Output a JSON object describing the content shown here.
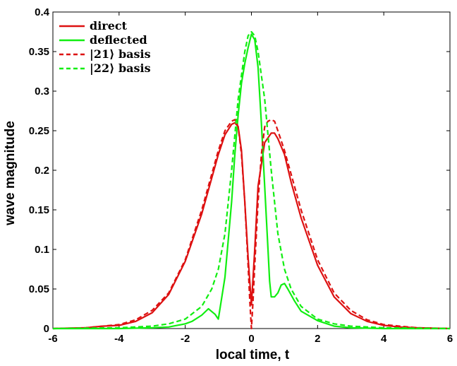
{
  "chart_data": {
    "type": "line",
    "xlabel": "local time, t",
    "ylabel": "wave magnitude",
    "xlim": [
      -6,
      6
    ],
    "ylim": [
      0,
      0.4
    ],
    "xticks": [
      -6,
      -4,
      -2,
      0,
      2,
      4,
      6
    ],
    "yticks": [
      0,
      0.05,
      0.1,
      0.15,
      0.2,
      0.25,
      0.3,
      0.35,
      0.4
    ],
    "xtick_labels": [
      "-6",
      "-4",
      "-2",
      "0",
      "2",
      "4",
      "6"
    ],
    "ytick_labels": [
      "0",
      "0.05",
      "0.1",
      "0.15",
      "0.2",
      "0.25",
      "0.3",
      "0.35",
      "0.4"
    ],
    "grid": false,
    "legend_position": "top-left",
    "colors": {
      "red": "#dd1111",
      "green": "#11ee11"
    },
    "series": [
      {
        "name": "direct",
        "color": "#dd1111",
        "style": "solid",
        "x": [
          -6,
          -5,
          -4.5,
          -4,
          -3.5,
          -3,
          -2.5,
          -2,
          -1.5,
          -1.2,
          -1,
          -0.8,
          -0.6,
          -0.5,
          -0.4,
          -0.3,
          -0.2,
          -0.1,
          0,
          0.1,
          0.2,
          0.4,
          0.6,
          0.7,
          0.8,
          1,
          1.2,
          1.5,
          2,
          2.5,
          3,
          3.5,
          4,
          4.5,
          5,
          6
        ],
        "y": [
          0,
          0.001,
          0.003,
          0.004,
          0.009,
          0.02,
          0.043,
          0.085,
          0.145,
          0.19,
          0.22,
          0.245,
          0.258,
          0.26,
          0.255,
          0.225,
          0.16,
          0.09,
          0.03,
          0.1,
          0.18,
          0.235,
          0.247,
          0.247,
          0.24,
          0.22,
          0.185,
          0.14,
          0.08,
          0.04,
          0.019,
          0.009,
          0.004,
          0.002,
          0.001,
          0
        ]
      },
      {
        "name": "deflected",
        "color": "#11ee11",
        "style": "solid",
        "x": [
          -6,
          -4,
          -3,
          -2.5,
          -2,
          -1.8,
          -1.5,
          -1.3,
          -1.1,
          -1,
          -0.8,
          -0.6,
          -0.5,
          -0.4,
          -0.3,
          -0.2,
          -0.1,
          0,
          0.1,
          0.2,
          0.3,
          0.4,
          0.5,
          0.55,
          0.6,
          0.7,
          0.8,
          0.9,
          1,
          1.1,
          1.3,
          1.5,
          2,
          2.5,
          3,
          4,
          6
        ],
        "y": [
          0,
          0,
          0.001,
          0.002,
          0.006,
          0.009,
          0.017,
          0.025,
          0.018,
          0.012,
          0.065,
          0.16,
          0.22,
          0.27,
          0.31,
          0.335,
          0.355,
          0.372,
          0.365,
          0.33,
          0.26,
          0.18,
          0.1,
          0.06,
          0.04,
          0.04,
          0.045,
          0.055,
          0.057,
          0.05,
          0.035,
          0.022,
          0.01,
          0.003,
          0.001,
          0,
          0
        ]
      },
      {
        "name": "|21⟩ basis",
        "color": "#dd1111",
        "style": "dashed",
        "x": [
          -6,
          -5,
          -4,
          -3.5,
          -3,
          -2.5,
          -2,
          -1.5,
          -1.2,
          -1,
          -0.8,
          -0.6,
          -0.5,
          -0.4,
          -0.3,
          -0.2,
          -0.1,
          -0.05,
          0,
          0.05,
          0.1,
          0.2,
          0.3,
          0.4,
          0.5,
          0.6,
          0.7,
          0.8,
          1,
          1.2,
          1.5,
          2,
          2.5,
          3,
          3.5,
          4,
          5,
          6
        ],
        "y": [
          0,
          0.001,
          0.005,
          0.011,
          0.023,
          0.045,
          0.087,
          0.15,
          0.195,
          0.225,
          0.25,
          0.262,
          0.264,
          0.255,
          0.22,
          0.16,
          0.08,
          0.035,
          0,
          0.035,
          0.08,
          0.16,
          0.22,
          0.255,
          0.262,
          0.264,
          0.262,
          0.25,
          0.225,
          0.195,
          0.15,
          0.087,
          0.045,
          0.023,
          0.011,
          0.005,
          0.001,
          0
        ]
      },
      {
        "name": "|22⟩ basis",
        "color": "#11ee11",
        "style": "dashed",
        "x": [
          -6,
          -4,
          -3,
          -2.5,
          -2,
          -1.5,
          -1.2,
          -1,
          -0.8,
          -0.6,
          -0.4,
          -0.2,
          -0.1,
          0,
          0.1,
          0.2,
          0.4,
          0.6,
          0.8,
          1,
          1.2,
          1.5,
          2,
          2.5,
          3,
          4,
          6
        ],
        "y": [
          0,
          0.001,
          0.003,
          0.006,
          0.012,
          0.028,
          0.05,
          0.075,
          0.12,
          0.2,
          0.29,
          0.35,
          0.37,
          0.375,
          0.37,
          0.35,
          0.29,
          0.2,
          0.12,
          0.075,
          0.05,
          0.028,
          0.012,
          0.006,
          0.003,
          0.001,
          0
        ]
      }
    ]
  }
}
